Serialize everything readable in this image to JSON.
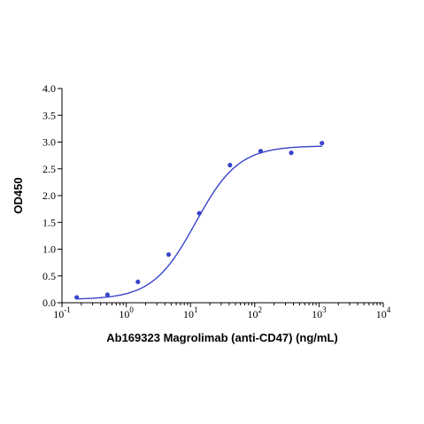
{
  "chart_data": {
    "type": "scatter",
    "xlabel": "Ab169323 Magrolimab (anti-CD47) (ng/mL)",
    "ylabel": "OD450",
    "x_scale": "log",
    "xlim": [
      0.1,
      10000
    ],
    "ylim": [
      0,
      4.0
    ],
    "x_ticks": [
      0.1,
      1,
      10,
      100,
      1000,
      10000
    ],
    "x_tick_labels": [
      {
        "base": "10",
        "exp": "-1"
      },
      {
        "base": "10",
        "exp": "0"
      },
      {
        "base": "10",
        "exp": "1"
      },
      {
        "base": "10",
        "exp": "2"
      },
      {
        "base": "10",
        "exp": "3"
      },
      {
        "base": "10",
        "exp": "4"
      }
    ],
    "y_ticks": [
      "0.0",
      "0.5",
      "1.0",
      "1.5",
      "2.0",
      "2.5",
      "3.0",
      "3.5",
      "4.0"
    ],
    "grid": false,
    "series": [
      {
        "points": [
          {
            "x": 0.17,
            "y": 0.1
          },
          {
            "x": 0.51,
            "y": 0.15
          },
          {
            "x": 1.52,
            "y": 0.39
          },
          {
            "x": 4.57,
            "y": 0.9
          },
          {
            "x": 13.7,
            "y": 1.67
          },
          {
            "x": 41.2,
            "y": 2.57
          },
          {
            "x": 123.5,
            "y": 2.83
          },
          {
            "x": 370,
            "y": 2.8
          },
          {
            "x": 1111,
            "y": 2.98
          }
        ],
        "color": "#3a44c9"
      }
    ],
    "fit_curve": {
      "model": "4PL",
      "bottom": 0.06,
      "top": 2.93,
      "ec50": 12.0,
      "hill": 1.3,
      "color": "#3a44c9"
    }
  }
}
